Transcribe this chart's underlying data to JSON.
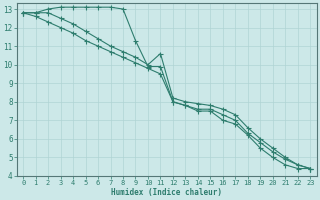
{
  "xlabel": "Humidex (Indice chaleur)",
  "ylabel": "",
  "background_color": "#cce8e8",
  "grid_color": "#b0d4d4",
  "line_color": "#2e7d6e",
  "xlim": [
    -0.5,
    23.5
  ],
  "ylim": [
    4,
    13.3
  ],
  "xticks": [
    0,
    1,
    2,
    3,
    4,
    5,
    6,
    7,
    8,
    9,
    10,
    11,
    12,
    13,
    14,
    15,
    16,
    17,
    18,
    19,
    20,
    21,
    22,
    23
  ],
  "yticks": [
    4,
    5,
    6,
    7,
    8,
    9,
    10,
    11,
    12,
    13
  ],
  "line1_x": [
    0,
    1,
    2,
    3,
    4,
    5,
    6,
    7,
    8,
    9,
    10,
    11,
    12,
    13,
    14,
    15,
    16,
    17,
    18,
    19,
    20,
    21,
    22,
    23
  ],
  "line1_y": [
    12.8,
    12.8,
    13.0,
    13.1,
    13.1,
    13.1,
    13.1,
    13.1,
    13.0,
    11.3,
    9.9,
    9.9,
    8.0,
    7.8,
    7.5,
    7.5,
    7.0,
    6.8,
    6.2,
    5.5,
    5.0,
    4.6,
    4.4,
    4.4
  ],
  "line2_x": [
    0,
    1,
    2,
    3,
    4,
    5,
    6,
    7,
    8,
    9,
    10,
    11,
    12,
    13,
    14,
    15,
    16,
    17,
    18,
    19,
    20,
    21,
    22,
    23
  ],
  "line2_y": [
    12.8,
    12.8,
    12.8,
    12.5,
    12.2,
    11.8,
    11.4,
    11.0,
    10.7,
    10.4,
    10.0,
    10.6,
    8.2,
    8.0,
    7.9,
    7.8,
    7.6,
    7.3,
    6.6,
    6.0,
    5.5,
    5.0,
    4.6,
    4.4
  ],
  "line3_x": [
    0,
    1,
    2,
    3,
    4,
    5,
    6,
    7,
    8,
    9,
    10,
    11,
    12,
    13,
    14,
    15,
    16,
    17,
    18,
    19,
    20,
    21,
    22,
    23
  ],
  "line3_y": [
    12.8,
    12.6,
    12.3,
    12.0,
    11.7,
    11.3,
    11.0,
    10.7,
    10.4,
    10.1,
    9.8,
    9.5,
    8.0,
    7.8,
    7.6,
    7.6,
    7.3,
    7.0,
    6.3,
    5.8,
    5.3,
    4.9,
    4.6,
    4.4
  ]
}
